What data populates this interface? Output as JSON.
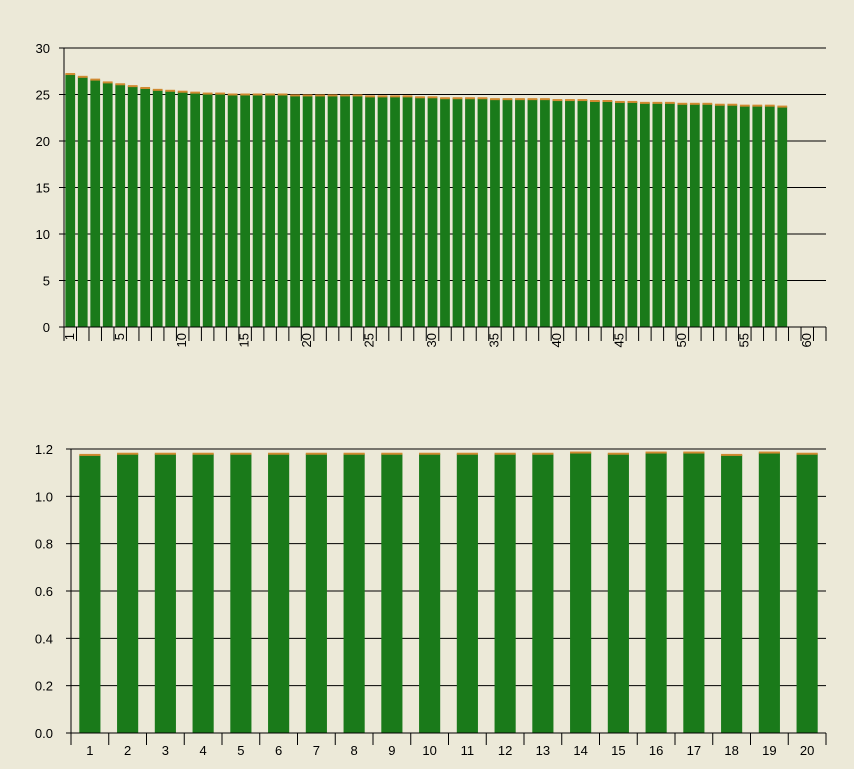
{
  "colors": {
    "background": "#ece9d8",
    "bar_fill": "#1a7a1a",
    "bar_cap": "#d08a30",
    "axis": "#000000",
    "grid": "#000000"
  },
  "chart_data": [
    {
      "type": "bar",
      "title": "",
      "xlabel": "",
      "ylabel": "",
      "ylim": [
        0,
        30
      ],
      "yticks": [
        "0",
        "5",
        "10",
        "15",
        "20",
        "25",
        "30"
      ],
      "xlim": [
        1,
        60
      ],
      "xtick_labels": [
        "1",
        "5",
        "10",
        "15",
        "20",
        "25",
        "30",
        "35",
        "40",
        "45",
        "50",
        "55",
        "60"
      ],
      "x_label_rotation": "vertical",
      "grid": "horizontal",
      "series": [
        {
          "values": [
            27.2,
            26.9,
            26.6,
            26.3,
            26.1,
            25.9,
            25.7,
            25.5,
            25.4,
            25.3,
            25.2,
            25.1,
            25.1,
            25.0,
            25.0,
            25.0,
            25.0,
            25.0,
            24.9,
            24.9,
            24.9,
            24.9,
            24.9,
            24.9,
            24.8,
            24.8,
            24.8,
            24.8,
            24.7,
            24.7,
            24.6,
            24.6,
            24.6,
            24.6,
            24.5,
            24.5,
            24.5,
            24.5,
            24.5,
            24.4,
            24.4,
            24.4,
            24.3,
            24.3,
            24.2,
            24.2,
            24.1,
            24.1,
            24.1,
            24.0,
            24.0,
            24.0,
            23.9,
            23.9,
            23.8,
            23.8,
            23.8,
            23.7
          ]
        }
      ]
    },
    {
      "type": "bar",
      "title": "",
      "xlabel": "",
      "ylabel": "",
      "ylim": [
        0,
        1.2
      ],
      "yticks": [
        "0.0",
        "0.2",
        "0.4",
        "0.6",
        "0.8",
        "1.0",
        "1.2"
      ],
      "categories": [
        "1",
        "2",
        "3",
        "4",
        "5",
        "6",
        "7",
        "8",
        "9",
        "10",
        "11",
        "12",
        "13",
        "14",
        "15",
        "16",
        "17",
        "18",
        "19",
        "20"
      ],
      "grid": "horizontal",
      "series": [
        {
          "values": [
            1.175,
            1.18,
            1.18,
            1.18,
            1.18,
            1.18,
            1.18,
            1.18,
            1.18,
            1.18,
            1.18,
            1.18,
            1.18,
            1.185,
            1.18,
            1.185,
            1.185,
            1.175,
            1.185,
            1.18
          ]
        }
      ]
    }
  ]
}
